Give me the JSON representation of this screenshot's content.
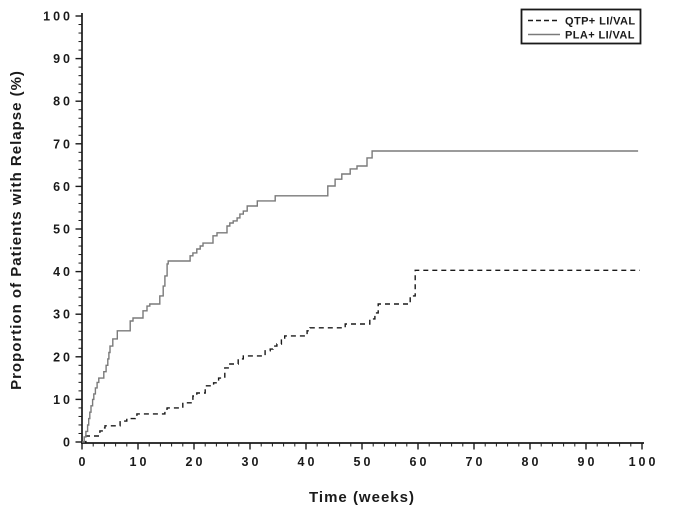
{
  "figure": {
    "background": "#ffffff",
    "axis_color": "#1a1a1a"
  },
  "chart_data": {
    "type": "line",
    "subtype": "kaplan-meier-step",
    "title": "",
    "xlabel": "Time (weeks)",
    "ylabel": "Proportion of Patients with Relapse (%)",
    "xlim": [
      0,
      100
    ],
    "ylim": [
      0,
      100
    ],
    "x_major_ticks": [
      0,
      10,
      20,
      30,
      40,
      50,
      60,
      70,
      80,
      90,
      100
    ],
    "y_major_ticks": [
      0,
      10,
      20,
      30,
      40,
      50,
      60,
      70,
      80,
      90,
      100
    ],
    "minor_tick_step": 2,
    "grid": false,
    "legend_position": "top-right",
    "series": [
      {
        "name": "QTP+ LI/VAL",
        "line_style": "dashed",
        "color": "#1a1a1a",
        "points": [
          [
            0,
            0
          ],
          [
            0.7,
            1.4
          ],
          [
            3.2,
            2.6
          ],
          [
            3.8,
            3.3
          ],
          [
            4.1,
            3.8
          ],
          [
            6.8,
            4.9
          ],
          [
            8,
            5.5
          ],
          [
            9.5,
            6.1
          ],
          [
            9.8,
            6.6
          ],
          [
            14.8,
            7.7
          ],
          [
            15.2,
            8
          ],
          [
            18,
            9.2
          ],
          [
            19.8,
            10.8
          ],
          [
            20.5,
            11.5
          ],
          [
            22,
            13.2
          ],
          [
            23.5,
            13.9
          ],
          [
            24.4,
            15
          ],
          [
            25.5,
            17.4
          ],
          [
            26.4,
            18.3
          ],
          [
            27.9,
            19.5
          ],
          [
            28.8,
            20.2
          ],
          [
            32.7,
            21.4
          ],
          [
            33.6,
            21.8
          ],
          [
            34.1,
            22.5
          ],
          [
            34.8,
            23
          ],
          [
            35.6,
            24.2
          ],
          [
            36.2,
            24.9
          ],
          [
            40.2,
            26.1
          ],
          [
            40.7,
            26.8
          ],
          [
            47,
            27.7
          ],
          [
            51.4,
            28.9
          ],
          [
            52.3,
            30.3
          ],
          [
            52.9,
            32.4
          ],
          [
            58.6,
            34.3
          ],
          [
            59.5,
            40.3
          ],
          [
            99.6,
            40.3
          ]
        ]
      },
      {
        "name": "PLA+ LI/VAL",
        "line_style": "solid",
        "color": "#7a7a7a",
        "points": [
          [
            0,
            0
          ],
          [
            0.4,
            1.2
          ],
          [
            0.7,
            2.5
          ],
          [
            1,
            4
          ],
          [
            1.2,
            5.5
          ],
          [
            1.4,
            7
          ],
          [
            1.6,
            8.5
          ],
          [
            1.9,
            10
          ],
          [
            2.1,
            11.3
          ],
          [
            2.4,
            12.7
          ],
          [
            2.7,
            14
          ],
          [
            3,
            15
          ],
          [
            3.9,
            16.5
          ],
          [
            4.3,
            18
          ],
          [
            4.6,
            19.5
          ],
          [
            4.8,
            21
          ],
          [
            5,
            22.5
          ],
          [
            5.5,
            24.2
          ],
          [
            6.3,
            26.1
          ],
          [
            8.6,
            28.4
          ],
          [
            9.1,
            29.1
          ],
          [
            10.9,
            30.8
          ],
          [
            11.6,
            31.9
          ],
          [
            12.1,
            32.4
          ],
          [
            13.9,
            34.3
          ],
          [
            14.5,
            36.6
          ],
          [
            14.8,
            39
          ],
          [
            15.2,
            41.8
          ],
          [
            15.4,
            42.5
          ],
          [
            19.3,
            43.7
          ],
          [
            19.8,
            44.4
          ],
          [
            20.5,
            45.3
          ],
          [
            21.1,
            46
          ],
          [
            21.6,
            46.7
          ],
          [
            23.4,
            48.4
          ],
          [
            24.1,
            49.1
          ],
          [
            25.9,
            50.7
          ],
          [
            26.4,
            51.4
          ],
          [
            27,
            51.9
          ],
          [
            27.7,
            52.6
          ],
          [
            28.2,
            53.5
          ],
          [
            28.8,
            54.2
          ],
          [
            29.5,
            55.4
          ],
          [
            31.3,
            56.6
          ],
          [
            34.5,
            57.8
          ],
          [
            43.9,
            60.1
          ],
          [
            45.2,
            61.7
          ],
          [
            46.4,
            62.9
          ],
          [
            47.9,
            64.1
          ],
          [
            49.1,
            64.8
          ],
          [
            50.9,
            66.7
          ],
          [
            51.8,
            68.3
          ],
          [
            99.3,
            68.3
          ]
        ]
      }
    ]
  },
  "legend": {
    "items": [
      {
        "label": "QTP+ LI/VAL",
        "sample": "dashed-line"
      },
      {
        "label": "PLA+ LI/VAL",
        "sample": "solid-line"
      }
    ]
  }
}
